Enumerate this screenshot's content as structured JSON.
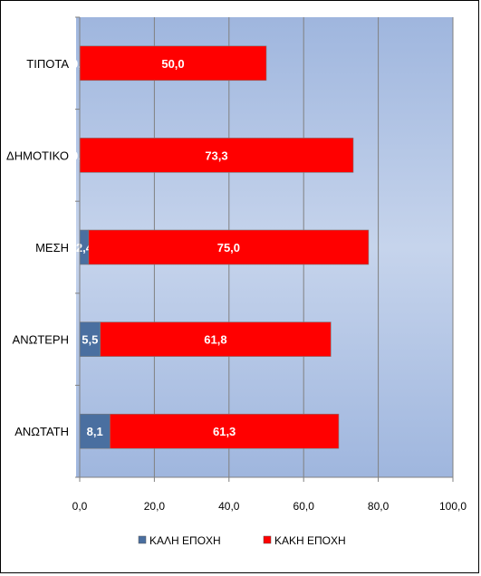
{
  "chart_data": {
    "type": "bar",
    "orientation": "horizontal",
    "stacked": true,
    "categories": [
      "ΤΙΠΟΤΑ",
      "ΔΗΜΟΤΙΚΟ",
      "ΜΕΣΗ",
      "ΑΝΩΤΕΡΗ",
      "ΑΝΩΤΑΤΗ"
    ],
    "series": [
      {
        "name": "ΚΑΛΗ ΕΠΟΧΗ",
        "color": "#4a6fa0",
        "values": [
          0.0,
          0.0,
          2.4,
          5.5,
          8.1
        ],
        "labels": [
          "0,0",
          "0,0",
          "2,4",
          "5,5",
          "8,1"
        ]
      },
      {
        "name": "ΚΑΚΗ ΕΠΟΧΗ",
        "color": "#ff0000",
        "values": [
          50.0,
          73.3,
          75.0,
          61.8,
          61.3
        ],
        "labels": [
          "50,0",
          "73,3",
          "75,0",
          "61,8",
          "61,3"
        ]
      }
    ],
    "xlim": [
      0,
      100
    ],
    "xticks": [
      0,
      20,
      40,
      60,
      80,
      100
    ],
    "xtick_labels": [
      "0,0",
      "20,0",
      "40,0",
      "60,0",
      "80,0",
      "100,0"
    ],
    "grid": true,
    "legend": "bottom",
    "plot_background": "#b8cbe8"
  }
}
